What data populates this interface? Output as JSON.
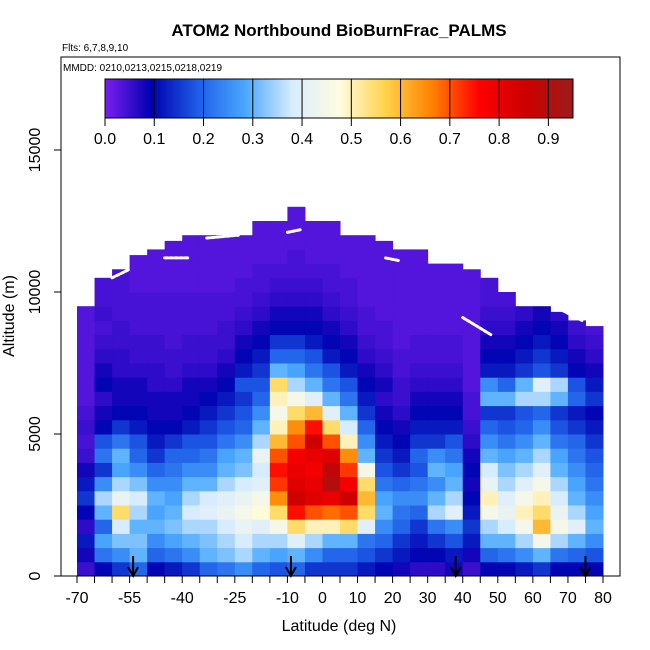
{
  "chart_data": {
    "type": "heatmap",
    "title": "ATOM2 Northbound BioBurnFrac_PALMS",
    "subtitle_flights": "Flts: 6,7,8,9,10",
    "subtitle_dates": "MMDD: 0210,0213,0215,0218,0219",
    "xlabel": "Latitude (deg N)",
    "ylabel": "Altitude (m)",
    "xlim": [
      -70,
      85
    ],
    "ylim": [
      0,
      17500
    ],
    "x_tick_labels": [
      "-70",
      "-55",
      "-40",
      "-25",
      "-10",
      "0",
      "10",
      "20",
      "30",
      "40",
      "50",
      "60",
      "70",
      "80"
    ],
    "x_tick_values": [
      -70,
      -55,
      -40,
      -25,
      -10,
      0,
      10,
      20,
      30,
      40,
      50,
      60,
      70,
      80
    ],
    "x_minor_step": 5,
    "y_tick_labels": [
      "0",
      "5000",
      "10000",
      "15000"
    ],
    "y_tick_values": [
      0,
      5000,
      10000,
      15000
    ],
    "colorbar": {
      "range": [
        0,
        0.95
      ],
      "tick_labels": [
        "0.0",
        "0.1",
        "0.2",
        "0.3",
        "0.4",
        "0.5",
        "0.6",
        "0.7",
        "0.8",
        "0.9"
      ],
      "tick_values": [
        0,
        0.1,
        0.2,
        0.3,
        0.4,
        0.5,
        0.6,
        0.7,
        0.8,
        0.9
      ],
      "colors": [
        "#7a1ff0",
        "#0000b0",
        "#1e5ee8",
        "#4aa8ff",
        "#d8ecff",
        "#fffce0",
        "#ffd24a",
        "#ff8000",
        "#ff0000",
        "#cc0000",
        "#9c1c1c"
      ]
    },
    "columns": [
      {
        "x0": -70,
        "x1": -65,
        "top": 9500,
        "profile": [
          0.05,
          0.08,
          0.12,
          0.06,
          0.1,
          0.15,
          0.12,
          0.08,
          0.05,
          0.04,
          0.05,
          0.04,
          0.03,
          0.03,
          0.03,
          0.03,
          0.03,
          0.03,
          0.03,
          0.03
        ]
      },
      {
        "x0": -65,
        "x1": -60,
        "top": 10500,
        "profile": [
          0.1,
          0.22,
          0.28,
          0.2,
          0.3,
          0.35,
          0.25,
          0.15,
          0.22,
          0.18,
          0.1,
          0.08,
          0.06,
          0.1,
          0.08,
          0.06,
          0.05,
          0.04,
          0.05,
          0.04,
          0.04
        ]
      },
      {
        "x0": -60,
        "x1": -55,
        "top": 10800,
        "profile": [
          0.15,
          0.25,
          0.32,
          0.38,
          0.55,
          0.42,
          0.35,
          0.28,
          0.3,
          0.22,
          0.15,
          0.1,
          0.08,
          0.08,
          0.06,
          0.06,
          0.05,
          0.05,
          0.04,
          0.04,
          0.04,
          0.04
        ]
      },
      {
        "x0": -55,
        "x1": -50,
        "top": 11300,
        "profile": [
          0.2,
          0.3,
          0.32,
          0.3,
          0.35,
          0.38,
          0.32,
          0.25,
          0.2,
          0.18,
          0.12,
          0.1,
          0.08,
          0.08,
          0.06,
          0.05,
          0.05,
          0.04,
          0.04,
          0.04,
          0.03,
          0.03,
          0.03
        ]
      },
      {
        "x0": -50,
        "x1": -45,
        "top": 11500,
        "profile": [
          0.1,
          0.2,
          0.25,
          0.3,
          0.28,
          0.3,
          0.25,
          0.2,
          0.15,
          0.12,
          0.1,
          0.08,
          0.08,
          0.06,
          0.06,
          0.05,
          0.05,
          0.04,
          0.04,
          0.04,
          0.03,
          0.03,
          0.03
        ]
      },
      {
        "x0": -45,
        "x1": -40,
        "top": 11800,
        "profile": [
          0.12,
          0.22,
          0.28,
          0.32,
          0.3,
          0.28,
          0.25,
          0.22,
          0.2,
          0.15,
          0.1,
          0.08,
          0.08,
          0.06,
          0.05,
          0.05,
          0.04,
          0.04,
          0.04,
          0.04,
          0.03,
          0.03,
          0.03,
          0.03
        ]
      },
      {
        "x0": -40,
        "x1": -35,
        "top": 12000,
        "profile": [
          0.15,
          0.25,
          0.3,
          0.35,
          0.38,
          0.35,
          0.3,
          0.25,
          0.2,
          0.18,
          0.12,
          0.1,
          0.08,
          0.08,
          0.06,
          0.05,
          0.05,
          0.04,
          0.04,
          0.04,
          0.03,
          0.03,
          0.03,
          0.03
        ]
      },
      {
        "x0": -35,
        "x1": -30,
        "top": 12000,
        "profile": [
          0.2,
          0.3,
          0.32,
          0.35,
          0.4,
          0.38,
          0.3,
          0.25,
          0.22,
          0.18,
          0.15,
          0.12,
          0.1,
          0.08,
          0.06,
          0.05,
          0.05,
          0.04,
          0.04,
          0.04,
          0.03,
          0.03,
          0.03,
          0.03
        ]
      },
      {
        "x0": -30,
        "x1": -25,
        "top": 12000,
        "profile": [
          0.22,
          0.32,
          0.35,
          0.38,
          0.42,
          0.4,
          0.35,
          0.3,
          0.28,
          0.22,
          0.18,
          0.15,
          0.12,
          0.1,
          0.08,
          0.06,
          0.05,
          0.05,
          0.04,
          0.04,
          0.03,
          0.03,
          0.03,
          0.03
        ]
      },
      {
        "x0": -25,
        "x1": -20,
        "top": 12000,
        "profile": [
          0.25,
          0.35,
          0.38,
          0.42,
          0.45,
          0.42,
          0.38,
          0.32,
          0.3,
          0.25,
          0.2,
          0.18,
          0.15,
          0.18,
          0.12,
          0.1,
          0.08,
          0.06,
          0.05,
          0.04,
          0.04,
          0.03,
          0.03,
          0.03
        ]
      },
      {
        "x0": -20,
        "x1": -15,
        "top": 12500,
        "profile": [
          0.2,
          0.3,
          0.35,
          0.4,
          0.48,
          0.45,
          0.4,
          0.38,
          0.42,
          0.35,
          0.3,
          0.25,
          0.2,
          0.18,
          0.15,
          0.12,
          0.1,
          0.08,
          0.06,
          0.05,
          0.04,
          0.04,
          0.03,
          0.03,
          0.03
        ]
      },
      {
        "x0": -15,
        "x1": -10,
        "top": 12500,
        "profile": [
          0.18,
          0.28,
          0.35,
          0.45,
          0.55,
          0.65,
          0.72,
          0.75,
          0.7,
          0.6,
          0.5,
          0.45,
          0.5,
          0.55,
          0.3,
          0.2,
          0.15,
          0.1,
          0.08,
          0.06,
          0.05,
          0.04,
          0.03,
          0.03,
          0.03
        ]
      },
      {
        "x0": -10,
        "x1": -5,
        "top": 13000,
        "profile": [
          0.2,
          0.3,
          0.4,
          0.55,
          0.75,
          0.85,
          0.82,
          0.8,
          0.78,
          0.7,
          0.65,
          0.55,
          0.45,
          0.35,
          0.28,
          0.2,
          0.15,
          0.1,
          0.08,
          0.06,
          0.05,
          0.04,
          0.04,
          0.03,
          0.03,
          0.03
        ]
      },
      {
        "x0": -5,
        "x1": 0,
        "top": 12500,
        "profile": [
          0.15,
          0.25,
          0.35,
          0.5,
          0.7,
          0.82,
          0.8,
          0.78,
          0.8,
          0.85,
          0.75,
          0.6,
          0.4,
          0.3,
          0.22,
          0.18,
          0.12,
          0.1,
          0.08,
          0.06,
          0.05,
          0.04,
          0.03,
          0.03,
          0.03
        ]
      },
      {
        "x0": 0,
        "x1": 5,
        "top": 12500,
        "profile": [
          0.15,
          0.2,
          0.3,
          0.5,
          0.68,
          0.8,
          0.9,
          0.88,
          0.82,
          0.7,
          0.55,
          0.4,
          0.3,
          0.22,
          0.18,
          0.12,
          0.1,
          0.08,
          0.06,
          0.05,
          0.04,
          0.04,
          0.03,
          0.03,
          0.03
        ]
      },
      {
        "x0": 5,
        "x1": 10,
        "top": 12000,
        "profile": [
          0.15,
          0.2,
          0.3,
          0.55,
          0.7,
          0.85,
          0.78,
          0.72,
          0.65,
          0.5,
          0.38,
          0.3,
          0.22,
          0.18,
          0.12,
          0.1,
          0.08,
          0.06,
          0.05,
          0.04,
          0.04,
          0.03,
          0.03,
          0.03
        ]
      },
      {
        "x0": 10,
        "x1": 15,
        "top": 12000,
        "profile": [
          0.12,
          0.18,
          0.22,
          0.4,
          0.55,
          0.6,
          0.55,
          0.45,
          0.3,
          0.25,
          0.2,
          0.15,
          0.12,
          0.1,
          0.08,
          0.06,
          0.05,
          0.04,
          0.04,
          0.03,
          0.03,
          0.03,
          0.03,
          0.03
        ]
      },
      {
        "x0": 15,
        "x1": 20,
        "top": 11800,
        "profile": [
          0.1,
          0.15,
          0.2,
          0.25,
          0.3,
          0.28,
          0.22,
          0.18,
          0.15,
          0.12,
          0.1,
          0.08,
          0.06,
          0.08,
          0.06,
          0.05,
          0.04,
          0.04,
          0.03,
          0.03,
          0.03,
          0.03,
          0.03,
          0.03
        ]
      },
      {
        "x0": 20,
        "x1": 25,
        "top": 11500,
        "profile": [
          0.08,
          0.12,
          0.15,
          0.2,
          0.22,
          0.25,
          0.2,
          0.15,
          0.12,
          0.1,
          0.08,
          0.06,
          0.05,
          0.05,
          0.04,
          0.04,
          0.03,
          0.03,
          0.03,
          0.03,
          0.03,
          0.03,
          0.03
        ]
      },
      {
        "x0": 25,
        "x1": 30,
        "top": 11500,
        "profile": [
          0.06,
          0.1,
          0.12,
          0.15,
          0.2,
          0.25,
          0.22,
          0.18,
          0.2,
          0.15,
          0.12,
          0.1,
          0.08,
          0.06,
          0.05,
          0.04,
          0.04,
          0.03,
          0.03,
          0.03,
          0.03,
          0.03,
          0.03
        ]
      },
      {
        "x0": 30,
        "x1": 35,
        "top": 11000,
        "profile": [
          0.06,
          0.1,
          0.15,
          0.22,
          0.35,
          0.3,
          0.25,
          0.3,
          0.25,
          0.15,
          0.12,
          0.1,
          0.08,
          0.06,
          0.05,
          0.04,
          0.04,
          0.03,
          0.03,
          0.03,
          0.03,
          0.03
        ]
      },
      {
        "x0": 35,
        "x1": 40,
        "top": 11000,
        "profile": [
          0.08,
          0.12,
          0.18,
          0.25,
          0.4,
          0.35,
          0.3,
          0.28,
          0.22,
          0.18,
          0.12,
          0.1,
          0.08,
          0.06,
          0.05,
          0.04,
          0.04,
          0.03,
          0.03,
          0.03,
          0.03,
          0.03
        ]
      },
      {
        "x0": 40,
        "x1": 45,
        "top": 10800,
        "profile": [
          0.05,
          0.08,
          0.12,
          0.15,
          0.12,
          0.1,
          0.08,
          0.1,
          0.08,
          0.06,
          0.05,
          0.04,
          0.04,
          0.03,
          0.03,
          0.03,
          0.03,
          0.03,
          0.03,
          0.03,
          0.03,
          0.03
        ]
      },
      {
        "x0": 45,
        "x1": 50,
        "top": 10500,
        "profile": [
          0.1,
          0.2,
          0.3,
          0.35,
          0.45,
          0.5,
          0.42,
          0.38,
          0.3,
          0.25,
          0.2,
          0.15,
          0.3,
          0.25,
          0.12,
          0.1,
          0.08,
          0.06,
          0.05,
          0.04,
          0.04
        ]
      },
      {
        "x0": 50,
        "x1": 55,
        "top": 10000,
        "profile": [
          0.1,
          0.22,
          0.3,
          0.38,
          0.42,
          0.4,
          0.35,
          0.32,
          0.28,
          0.22,
          0.18,
          0.15,
          0.3,
          0.2,
          0.12,
          0.1,
          0.08,
          0.06,
          0.05,
          0.04
        ]
      },
      {
        "x0": 55,
        "x1": 60,
        "top": 9800,
        "profile": [
          0.12,
          0.25,
          0.35,
          0.45,
          0.5,
          0.45,
          0.4,
          0.35,
          0.3,
          0.25,
          0.2,
          0.18,
          0.35,
          0.3,
          0.15,
          0.12,
          0.1,
          0.08,
          0.06
        ]
      },
      {
        "x0": 60,
        "x1": 65,
        "top": 9500,
        "profile": [
          0.15,
          0.3,
          0.45,
          0.6,
          0.55,
          0.5,
          0.45,
          0.4,
          0.35,
          0.3,
          0.25,
          0.2,
          0.35,
          0.4,
          0.18,
          0.15,
          0.12,
          0.1,
          0.08
        ]
      },
      {
        "x0": 65,
        "x1": 70,
        "top": 9300,
        "profile": [
          0.1,
          0.22,
          0.35,
          0.45,
          0.42,
          0.38,
          0.35,
          0.3,
          0.28,
          0.22,
          0.18,
          0.15,
          0.3,
          0.35,
          0.15,
          0.12,
          0.1,
          0.08,
          0.06
        ]
      },
      {
        "x0": 70,
        "x1": 75,
        "top": 9000,
        "profile": [
          0.1,
          0.2,
          0.3,
          0.4,
          0.35,
          0.3,
          0.28,
          0.25,
          0.22,
          0.2,
          0.15,
          0.12,
          0.2,
          0.18,
          0.1,
          0.08,
          0.06,
          0.05
        ]
      },
      {
        "x0": 75,
        "x1": 80,
        "top": 8800,
        "profile": [
          0.1,
          0.18,
          0.25,
          0.3,
          0.28,
          0.25,
          0.22,
          0.2,
          0.18,
          0.15,
          0.12,
          0.1,
          0.15,
          0.12,
          0.08,
          0.06,
          0.05,
          0.04
        ]
      }
    ],
    "flight_track_segments": [
      {
        "from": [
          -60,
          10500
        ],
        "to": [
          -55,
          10800
        ]
      },
      {
        "from": [
          -45,
          11200
        ],
        "to": [
          -38,
          11200
        ]
      },
      {
        "from": [
          -33,
          11900
        ],
        "to": [
          -24,
          12000
        ]
      },
      {
        "from": [
          -10,
          12100
        ],
        "to": [
          -6,
          12200
        ]
      },
      {
        "from": [
          18,
          11200
        ],
        "to": [
          22,
          11100
        ]
      },
      {
        "from": [
          40,
          9100
        ],
        "to": [
          48,
          8500
        ]
      },
      {
        "from": [
          66,
          9500
        ],
        "to": [
          74,
          9000
        ]
      }
    ],
    "arrows_latitude": [
      -54,
      -9,
      38,
      75
    ]
  }
}
